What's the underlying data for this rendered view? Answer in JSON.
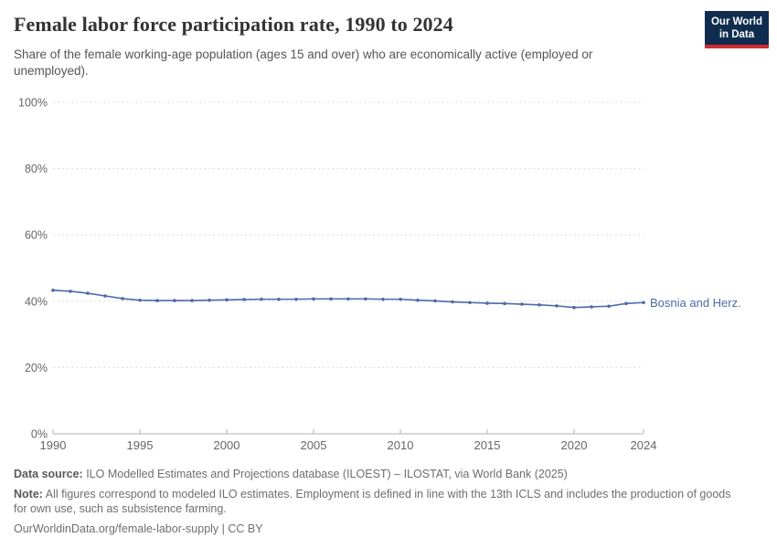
{
  "header": {
    "title": "Female labor force participation rate, 1990 to 2024",
    "subtitle": "Share of the female working-age population (ages 15 and over) who are economically active (employed or unemployed).",
    "logo": {
      "line1": "Our World",
      "line2": "in Data"
    }
  },
  "chart_data": {
    "type": "line",
    "title": "Female labor force participation rate, 1990 to 2024",
    "xlabel": "",
    "ylabel": "",
    "xlim": [
      1990,
      2024
    ],
    "ylim": [
      0,
      100
    ],
    "grid": "horizontal-dashed",
    "legend_position": "end-of-line-label",
    "x": [
      1990,
      1991,
      1992,
      1993,
      1994,
      1995,
      1996,
      1997,
      1998,
      1999,
      2000,
      2001,
      2002,
      2003,
      2004,
      2005,
      2006,
      2007,
      2008,
      2009,
      2010,
      2011,
      2012,
      2013,
      2014,
      2015,
      2016,
      2017,
      2018,
      2019,
      2020,
      2021,
      2022,
      2023,
      2024
    ],
    "series": [
      {
        "name": "Bosnia and Herz.",
        "color": "#4c6ba8",
        "values": [
          43.3,
          43.0,
          42.4,
          41.6,
          40.8,
          40.3,
          40.2,
          40.2,
          40.2,
          40.3,
          40.4,
          40.5,
          40.6,
          40.6,
          40.6,
          40.7,
          40.7,
          40.7,
          40.7,
          40.6,
          40.6,
          40.3,
          40.1,
          39.8,
          39.6,
          39.4,
          39.3,
          39.1,
          38.9,
          38.6,
          38.1,
          38.3,
          38.5,
          39.3,
          39.6
        ]
      }
    ],
    "y_ticks": [
      {
        "value": 0,
        "label": "0%"
      },
      {
        "value": 20,
        "label": "20%"
      },
      {
        "value": 40,
        "label": "40%"
      },
      {
        "value": 60,
        "label": "60%"
      },
      {
        "value": 80,
        "label": "80%"
      },
      {
        "value": 100,
        "label": "100%"
      }
    ],
    "x_ticks": [
      {
        "value": 1990,
        "label": "1990"
      },
      {
        "value": 1995,
        "label": "1995"
      },
      {
        "value": 2000,
        "label": "2000"
      },
      {
        "value": 2005,
        "label": "2005"
      },
      {
        "value": 2010,
        "label": "2010"
      },
      {
        "value": 2015,
        "label": "2015"
      },
      {
        "value": 2020,
        "label": "2020"
      },
      {
        "value": 2024,
        "label": "2024"
      }
    ],
    "colors": {
      "gridline": "#dcdcdc",
      "axis": "#b3b3b3",
      "tick_label": "#666666"
    }
  },
  "footer": {
    "data_source_label": "Data source:",
    "data_source_text": " ILO Modelled Estimates and Projections database (ILOEST) – ILOSTAT, via World Bank (2025)",
    "note_label": "Note:",
    "note_text": " All figures correspond to modeled ILO estimates. Employment is defined in line with the 13th ICLS and includes the production of goods for own use, such as subsistence farming.",
    "link_text": "OurWorldinData.org/female-labor-supply | CC BY"
  }
}
